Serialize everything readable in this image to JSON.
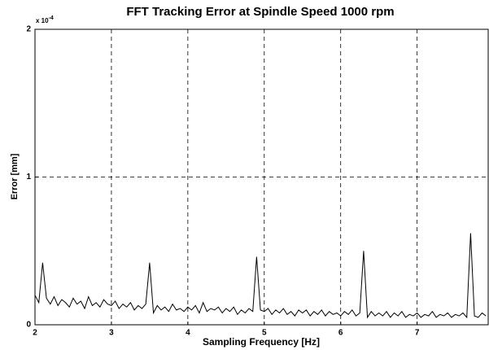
{
  "chart_data": {
    "type": "line",
    "title": "FFT Tracking Error at Spindle Speed 1000 rpm",
    "x_label": "Sampling Frequency [Hz]",
    "y_label": "Error [mm]",
    "y_multiplier": {
      "base": "x 10",
      "exponent": "-4"
    },
    "xlim": [
      2,
      7.93
    ],
    "ylim": [
      0,
      2
    ],
    "xticks": [
      2,
      3,
      4,
      5,
      6,
      7
    ],
    "yticks": [
      0,
      1,
      2
    ],
    "grid": true,
    "series": [
      {
        "color": "#000000",
        "x": [
          2.0,
          2.05,
          2.1,
          2.15,
          2.2,
          2.25,
          2.3,
          2.35,
          2.4,
          2.45,
          2.5,
          2.55,
          2.6,
          2.65,
          2.7,
          2.75,
          2.8,
          2.85,
          2.9,
          2.95,
          3.0,
          3.05,
          3.1,
          3.15,
          3.2,
          3.25,
          3.3,
          3.35,
          3.4,
          3.45,
          3.5,
          3.55,
          3.6,
          3.65,
          3.7,
          3.75,
          3.8,
          3.85,
          3.9,
          3.95,
          4.0,
          4.05,
          4.1,
          4.15,
          4.2,
          4.25,
          4.3,
          4.35,
          4.4,
          4.45,
          4.5,
          4.55,
          4.6,
          4.65,
          4.7,
          4.75,
          4.8,
          4.85,
          4.9,
          4.95,
          5.0,
          5.05,
          5.1,
          5.15,
          5.2,
          5.25,
          5.3,
          5.35,
          5.4,
          5.45,
          5.5,
          5.55,
          5.6,
          5.65,
          5.7,
          5.75,
          5.8,
          5.85,
          5.9,
          5.95,
          6.0,
          6.05,
          6.1,
          6.15,
          6.2,
          6.25,
          6.3,
          6.35,
          6.4,
          6.45,
          6.5,
          6.55,
          6.6,
          6.65,
          6.7,
          6.75,
          6.8,
          6.85,
          6.9,
          6.95,
          7.0,
          7.05,
          7.1,
          7.15,
          7.2,
          7.25,
          7.3,
          7.35,
          7.4,
          7.45,
          7.5,
          7.55,
          7.6,
          7.65,
          7.7,
          7.75,
          7.8,
          7.85,
          7.9
        ],
        "values": [
          0.2,
          0.15,
          0.42,
          0.18,
          0.14,
          0.19,
          0.13,
          0.17,
          0.15,
          0.12,
          0.18,
          0.14,
          0.16,
          0.11,
          0.19,
          0.13,
          0.15,
          0.12,
          0.17,
          0.14,
          0.13,
          0.16,
          0.11,
          0.14,
          0.12,
          0.15,
          0.1,
          0.13,
          0.11,
          0.14,
          0.42,
          0.08,
          0.13,
          0.1,
          0.12,
          0.09,
          0.14,
          0.1,
          0.11,
          0.09,
          0.12,
          0.1,
          0.13,
          0.08,
          0.15,
          0.09,
          0.11,
          0.1,
          0.12,
          0.08,
          0.11,
          0.09,
          0.12,
          0.07,
          0.1,
          0.08,
          0.11,
          0.09,
          0.46,
          0.1,
          0.09,
          0.11,
          0.07,
          0.1,
          0.08,
          0.11,
          0.07,
          0.09,
          0.06,
          0.1,
          0.08,
          0.1,
          0.06,
          0.09,
          0.07,
          0.1,
          0.06,
          0.09,
          0.07,
          0.08,
          0.06,
          0.09,
          0.07,
          0.1,
          0.06,
          0.08,
          0.5,
          0.05,
          0.09,
          0.06,
          0.08,
          0.06,
          0.09,
          0.05,
          0.08,
          0.06,
          0.09,
          0.05,
          0.07,
          0.06,
          0.08,
          0.05,
          0.07,
          0.06,
          0.09,
          0.05,
          0.07,
          0.06,
          0.08,
          0.05,
          0.07,
          0.06,
          0.08,
          0.05,
          0.62,
          0.06,
          0.05,
          0.08,
          0.06
        ]
      }
    ]
  }
}
